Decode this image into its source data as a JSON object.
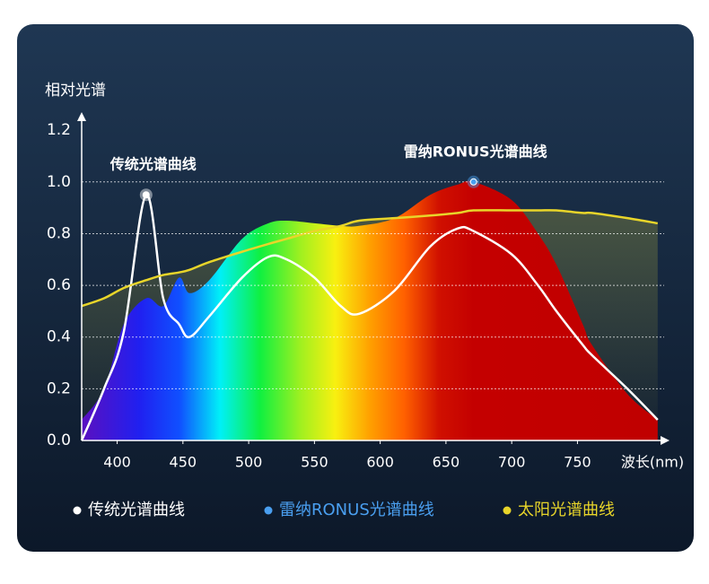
{
  "chart_data": {
    "type": "line",
    "y_label": "相对光谱",
    "x_label": "波长(nm)",
    "xlim": [
      373,
      820
    ],
    "ylim": [
      0,
      1.27
    ],
    "xticks": [
      400,
      450,
      500,
      550,
      600,
      650,
      700,
      750
    ],
    "yticks": [
      0.0,
      0.2,
      0.4,
      0.6,
      0.8,
      1.0,
      1.2
    ],
    "grid": true,
    "annotations": [
      "传统光谱曲线",
      "雷纳RONUS光谱曲线"
    ],
    "x": [
      373,
      390,
      405,
      422,
      435,
      447,
      455,
      470,
      495,
      515,
      529,
      550,
      570,
      584,
      611,
      638,
      659,
      671,
      700,
      720,
      734,
      754,
      761,
      788,
      811
    ],
    "series": [
      {
        "name": "传统光谱曲线",
        "color": "#ffffff",
        "values": [
          0,
          0.2,
          0.42,
          0.95,
          0.55,
          0.45,
          0.4,
          0.48,
          0.63,
          0.71,
          0.7,
          0.63,
          0.52,
          0.49,
          0.58,
          0.75,
          0.82,
          0.81,
          0.72,
          0.6,
          0.5,
          0.37,
          0.33,
          0.2,
          0.08
        ]
      },
      {
        "name": "雷纳RONUS光谱曲线",
        "color": "#4a9ff0",
        "values": [
          0.08,
          0.2,
          0.45,
          0.55,
          0.52,
          0.63,
          0.57,
          0.62,
          0.78,
          0.84,
          0.85,
          0.84,
          0.83,
          0.83,
          0.86,
          0.95,
          0.99,
          1.0,
          0.93,
          0.8,
          0.68,
          0.45,
          0.37,
          0.18,
          0.08
        ]
      },
      {
        "name": "太阳光谱曲线",
        "color": "#e8d52a",
        "values": [
          0.52,
          0.55,
          0.59,
          0.62,
          0.64,
          0.65,
          0.66,
          0.69,
          0.73,
          0.76,
          0.78,
          0.81,
          0.83,
          0.85,
          0.86,
          0.87,
          0.88,
          0.89,
          0.89,
          0.89,
          0.89,
          0.88,
          0.88,
          0.86,
          0.84
        ]
      }
    ]
  }
}
